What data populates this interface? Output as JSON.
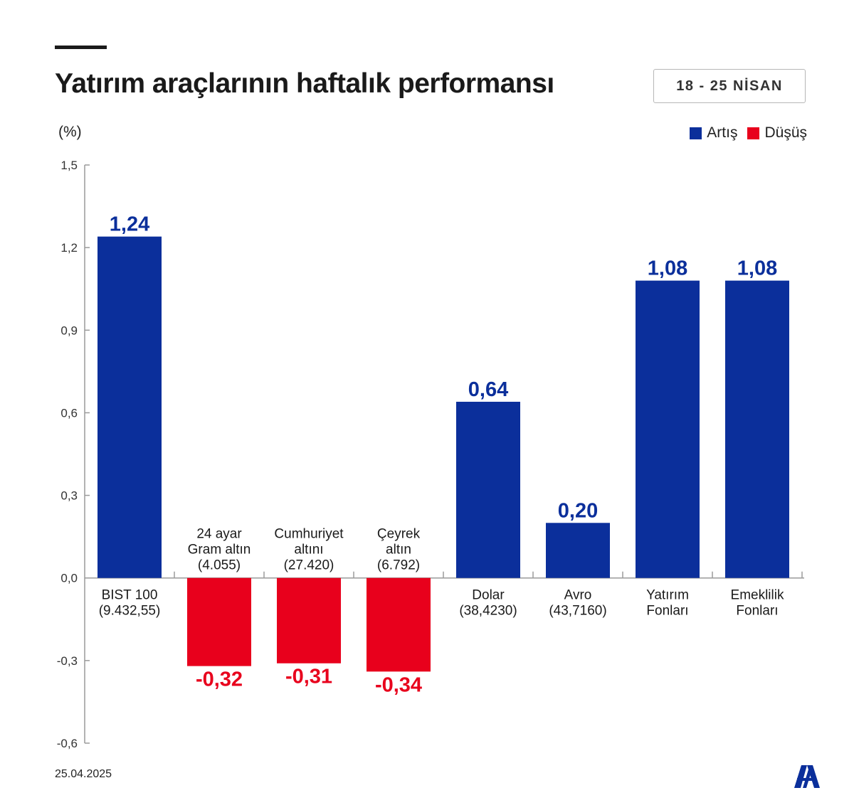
{
  "header": {
    "title": "Yatırım araçlarının haftalık performansı",
    "date_range": "18 - 25 NİSAN"
  },
  "footer": {
    "date": "25.04.2025"
  },
  "colors": {
    "increase": "#0b2f9b",
    "decrease": "#e8001c",
    "axis": "#9a9a9a"
  },
  "chart_data": {
    "type": "bar",
    "unit_label": "(%)",
    "legend": [
      {
        "name": "Artış",
        "color": "#0b2f9b"
      },
      {
        "name": "Düşüş",
        "color": "#e8001c"
      }
    ],
    "legend_position": "top-right",
    "ylim": [
      -0.6,
      1.5
    ],
    "yticks": [
      "1,5",
      "1,2",
      "0,9",
      "0,6",
      "0,3",
      "0,0",
      "-0,3",
      "-0,6"
    ],
    "ytick_values": [
      1.5,
      1.2,
      0.9,
      0.6,
      0.3,
      0.0,
      -0.3,
      -0.6
    ],
    "grid": false,
    "categories": [
      {
        "lines": [
          "BIST 100",
          "(9.432,55)"
        ],
        "value": 1.24,
        "label": "1,24"
      },
      {
        "lines": [
          "24 ayar",
          "Gram altın",
          "(4.055)"
        ],
        "value": -0.32,
        "label": "-0,32"
      },
      {
        "lines": [
          "Cumhuriyet",
          "altını",
          "(27.420)"
        ],
        "value": -0.31,
        "label": "-0,31"
      },
      {
        "lines": [
          "Çeyrek",
          "altın",
          "(6.792)"
        ],
        "value": -0.34,
        "label": "-0,34"
      },
      {
        "lines": [
          "Dolar",
          "(38,4230)"
        ],
        "value": 0.64,
        "label": "0,64"
      },
      {
        "lines": [
          "Avro",
          "(43,7160)"
        ],
        "value": 0.2,
        "label": "0,20"
      },
      {
        "lines": [
          "Yatırım",
          "Fonları"
        ],
        "value": 1.08,
        "label": "1,08"
      },
      {
        "lines": [
          "Emeklilik",
          "Fonları"
        ],
        "value": 1.08,
        "label": "1,08"
      }
    ]
  }
}
